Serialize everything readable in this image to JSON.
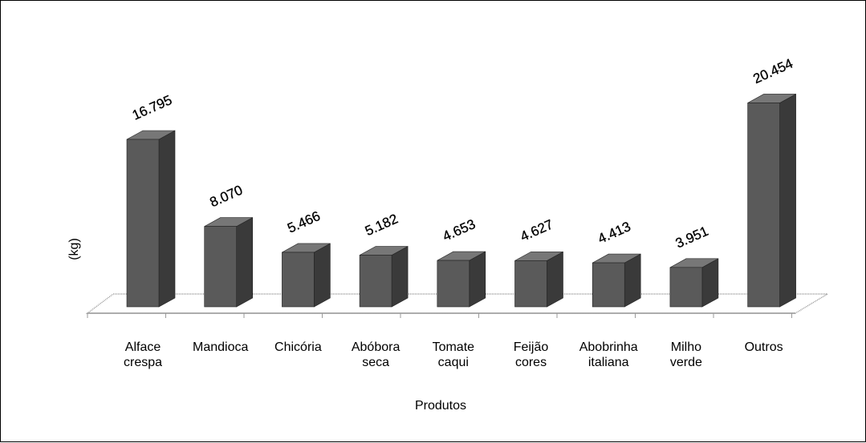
{
  "chart_data": {
    "type": "bar",
    "style": "3d-column",
    "categories": [
      [
        "Alface",
        "crespa"
      ],
      [
        "Mandioca"
      ],
      [
        "Chicória"
      ],
      [
        "Abóbora",
        "seca"
      ],
      [
        "Tomate",
        "caqui"
      ],
      [
        "Feijão",
        "cores"
      ],
      [
        "Abobrinha",
        "italiana"
      ],
      [
        "Milho",
        "verde"
      ],
      [
        "Outros"
      ]
    ],
    "values": [
      16795,
      8070,
      5466,
      5182,
      4653,
      4627,
      4413,
      3951,
      20454
    ],
    "value_labels": [
      "16.795",
      "8.070",
      "5.466",
      "5.182",
      "4.653",
      "4.627",
      "4.413",
      "3.951",
      "20.454"
    ],
    "xlabel": "Produtos",
    "ylabel": "(kg)",
    "grid": false,
    "legend": "none",
    "colors": {
      "front": "#5a5a5a",
      "side": "#3a3a3a",
      "top": "#777777",
      "floor": "#9a9a9a"
    }
  }
}
